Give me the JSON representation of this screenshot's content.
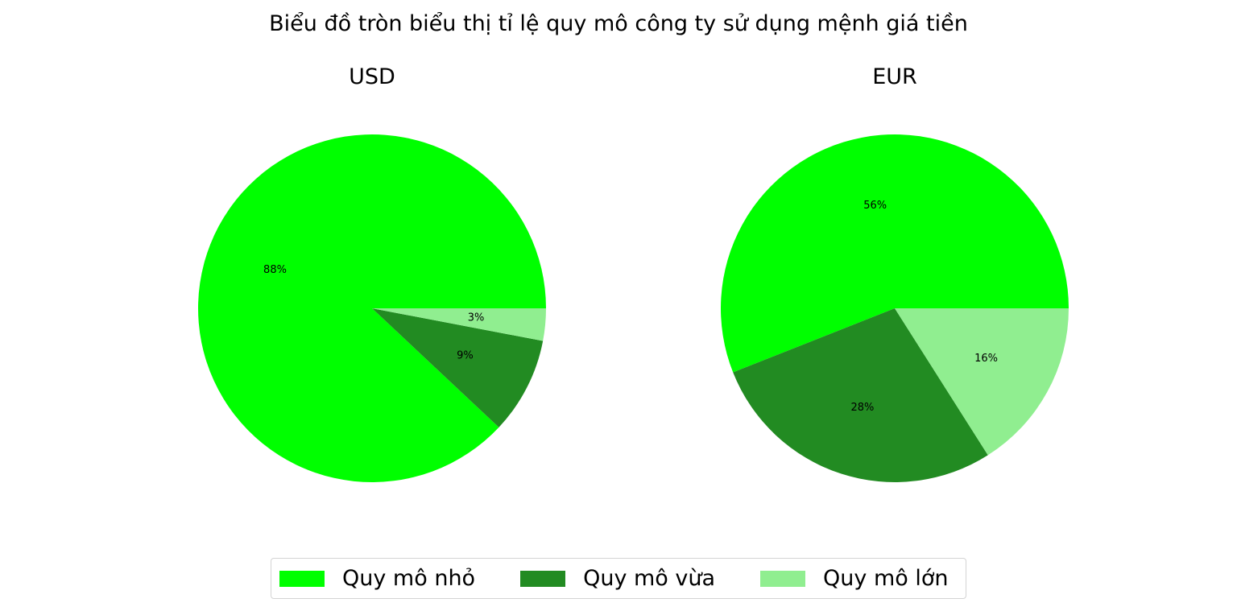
{
  "title": "Biểu đồ tròn biểu thị tỉ lệ quy mô công ty sử dụng mệnh giá tiền",
  "legend": {
    "placement": "bottom-center",
    "items": [
      {
        "label": "Quy mô nhỏ",
        "color": "#00ff00"
      },
      {
        "label": "Quy mô vừa",
        "color": "#228b22"
      },
      {
        "label": "Quy mô lớn",
        "color": "#90ee90"
      }
    ]
  },
  "chart_data": [
    {
      "type": "pie",
      "title": "USD",
      "categories": [
        "Quy mô nhỏ",
        "Quy mô vừa",
        "Quy mô lớn"
      ],
      "values": [
        88,
        9,
        3
      ],
      "labels": [
        "88%",
        "9%",
        "3%"
      ],
      "colors": [
        "#00ff00",
        "#228b22",
        "#90ee90"
      ],
      "start_angle_deg": 0,
      "direction": "counterclockwise"
    },
    {
      "type": "pie",
      "title": "EUR",
      "categories": [
        "Quy mô nhỏ",
        "Quy mô vừa",
        "Quy mô lớn"
      ],
      "values": [
        56,
        28,
        16
      ],
      "labels": [
        "56%",
        "28%",
        "16%"
      ],
      "colors": [
        "#00ff00",
        "#228b22",
        "#90ee90"
      ],
      "start_angle_deg": 0,
      "direction": "counterclockwise"
    }
  ]
}
